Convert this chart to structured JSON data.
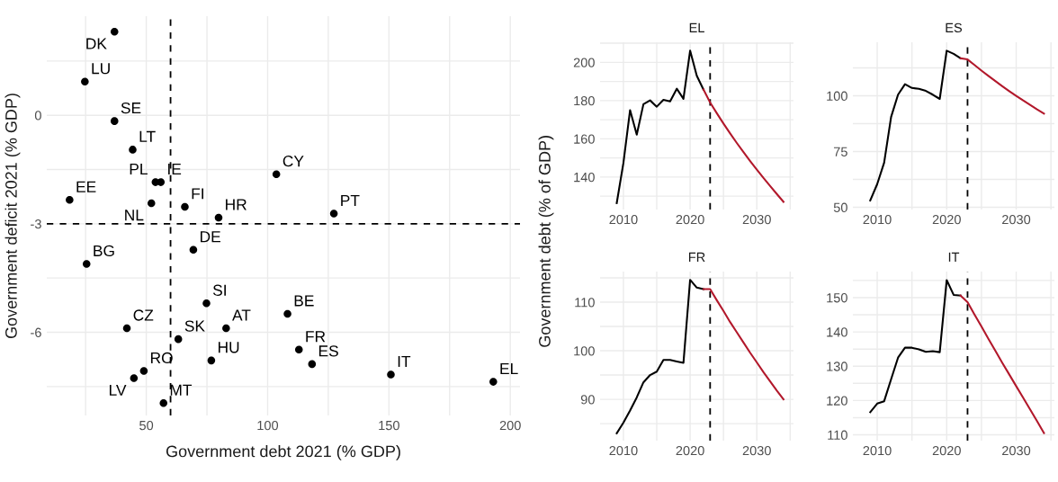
{
  "chart_data": [
    {
      "type": "scatter",
      "xlabel": "Government debt 2021 (% GDP)",
      "ylabel": "Government deficit 2021 (% GDP)",
      "xlim": [
        9,
        204
      ],
      "ylim": [
        -8.3,
        2.74
      ],
      "xticks": [
        {
          "value": 25,
          "label": null
        },
        50,
        {
          "value": 75,
          "label": null
        },
        100,
        {
          "value": 125,
          "label": null
        },
        150,
        {
          "value": 175,
          "label": null
        },
        200
      ],
      "yticks": [
        {
          "value": -7.5,
          "label": null
        },
        -6,
        {
          "value": -4.5,
          "label": null
        },
        -3,
        {
          "value": -1.5,
          "label": null
        },
        0,
        {
          "value": 1.5,
          "label": null
        }
      ],
      "grid": true,
      "marker": "circle",
      "x": [
        36.9,
        24.7,
        36.9,
        44.4,
        56.0,
        53.8,
        52.1,
        18.4,
        65.9,
        79.8,
        103.6,
        127.3,
        69.4,
        25.4,
        74.8,
        108.2,
        42.0,
        82.9,
        63.2,
        112.9,
        76.8,
        118.3,
        49.0,
        150.8,
        44.9,
        193.0,
        57.1
      ],
      "series": [
        {
          "color": "#000000",
          "values": [
            2.31,
            0.93,
            -0.16,
            -0.95,
            -1.85,
            -1.85,
            -2.43,
            -2.34,
            -2.53,
            -2.83,
            -1.63,
            -2.72,
            -3.72,
            -4.11,
            -5.2,
            -5.49,
            -5.89,
            -5.89,
            -6.19,
            -6.48,
            -6.78,
            -6.88,
            -7.07,
            -7.17,
            -7.27,
            -7.37,
            -7.96
          ]
        }
      ],
      "annotations": [
        {
          "text": "DK",
          "x": 36.9,
          "y": 2.31
        },
        {
          "text": "LU",
          "x": 24.7,
          "y": 0.93
        },
        {
          "text": "SE",
          "x": 36.9,
          "y": -0.16
        },
        {
          "text": "LT",
          "x": 44.4,
          "y": -0.95
        },
        {
          "text": "IE",
          "x": 56.0,
          "y": -1.85
        },
        {
          "text": "PL",
          "x": 53.8,
          "y": -1.85
        },
        {
          "text": "NL",
          "x": 52.1,
          "y": -2.43
        },
        {
          "text": "EE",
          "x": 18.4,
          "y": -2.34
        },
        {
          "text": "FI",
          "x": 65.9,
          "y": -2.53
        },
        {
          "text": "HR",
          "x": 79.8,
          "y": -2.83
        },
        {
          "text": "CY",
          "x": 103.6,
          "y": -1.63
        },
        {
          "text": "PT",
          "x": 127.3,
          "y": -2.72
        },
        {
          "text": "DE",
          "x": 69.4,
          "y": -3.72
        },
        {
          "text": "BG",
          "x": 25.4,
          "y": -4.11
        },
        {
          "text": "SI",
          "x": 74.8,
          "y": -5.2
        },
        {
          "text": "BE",
          "x": 108.2,
          "y": -5.49
        },
        {
          "text": "CZ",
          "x": 42.0,
          "y": -5.89
        },
        {
          "text": "AT",
          "x": 82.9,
          "y": -5.89
        },
        {
          "text": "SK",
          "x": 63.2,
          "y": -6.19
        },
        {
          "text": "FR",
          "x": 112.9,
          "y": -6.48
        },
        {
          "text": "HU",
          "x": 76.8,
          "y": -6.78
        },
        {
          "text": "ES",
          "x": 118.3,
          "y": -6.88
        },
        {
          "text": "RO",
          "x": 49.0,
          "y": -7.07
        },
        {
          "text": "IT",
          "x": 150.8,
          "y": -7.17
        },
        {
          "text": "LV",
          "x": 44.9,
          "y": -7.27
        },
        {
          "text": "EL",
          "x": 193.0,
          "y": -7.37
        },
        {
          "text": "MT",
          "x": 57.1,
          "y": -7.96
        }
      ],
      "ref_lines": [
        {
          "axis": "x",
          "value": 60,
          "color": "#000000",
          "line_style": "dashed"
        },
        {
          "axis": "y",
          "value": -3,
          "color": "#000000",
          "line_style": "dashed"
        }
      ]
    },
    {
      "type": "line",
      "title": "EL",
      "ylabel": "Government debt (% of GDP)",
      "xlim": [
        2006.5,
        2035.5
      ],
      "ylim": [
        123,
        210.5
      ],
      "xticks": [
        2010,
        {
          "value": 2015,
          "label": null
        },
        2020,
        {
          "value": 2025,
          "label": null
        },
        2030,
        {
          "value": 2035,
          "label": null
        }
      ],
      "yticks": [
        {
          "value": 130,
          "label": null
        },
        140,
        {
          "value": 150,
          "label": null
        },
        160,
        {
          "value": 170,
          "label": null
        },
        180,
        {
          "value": 190,
          "label": null
        },
        200,
        {
          "value": 210,
          "label": null
        }
      ],
      "grid": true,
      "marker": "none",
      "line_style": "solid",
      "series": [
        {
          "color": "#000000",
          "x": [
            2009,
            2010,
            2011,
            2012,
            2013,
            2014,
            2015,
            2016,
            2017,
            2018,
            2019,
            2020,
            2021,
            2022
          ],
          "values": [
            126.4,
            147.4,
            175.0,
            162.2,
            178.1,
            180.1,
            176.8,
            180.4,
            179.6,
            186.2,
            180.9,
            206.1,
            193.0,
            185.8
          ]
        },
        {
          "color": "#b2182b",
          "x": [
            2022,
            2023,
            2024,
            2025,
            2026,
            2027,
            2028,
            2029,
            2030,
            2031,
            2032,
            2033,
            2034
          ],
          "values": [
            185.8,
            179.0,
            173.4,
            168.0,
            162.8,
            157.8,
            153.0,
            148.4,
            143.9,
            139.5,
            135.3,
            131.1,
            127.0
          ]
        }
      ],
      "ref_lines": [
        {
          "axis": "x",
          "value": 2023,
          "color": "#000000",
          "line_style": "dashed"
        }
      ]
    },
    {
      "type": "line",
      "title": "ES",
      "xlim": [
        2006.5,
        2035.5
      ],
      "ylim": [
        49,
        124
      ],
      "xticks": [
        2010,
        {
          "value": 2015,
          "label": null
        },
        2020,
        {
          "value": 2025,
          "label": null
        },
        2030,
        {
          "value": 2035,
          "label": null
        }
      ],
      "yticks": [
        50,
        {
          "value": 62.5,
          "label": null
        },
        75,
        {
          "value": 87.5,
          "label": null
        },
        100,
        {
          "value": 112.5,
          "label": null
        }
      ],
      "grid": true,
      "marker": "none",
      "line_style": "solid",
      "series": [
        {
          "color": "#000000",
          "x": [
            2009,
            2010,
            2011,
            2012,
            2013,
            2014,
            2015,
            2016,
            2017,
            2018,
            2019,
            2020,
            2021,
            2022
          ],
          "values": [
            53.1,
            60.4,
            70.0,
            90.5,
            100.5,
            105.2,
            103.5,
            103.1,
            102.2,
            100.5,
            98.6,
            120.2,
            118.8,
            116.8
          ]
        },
        {
          "color": "#b2182b",
          "x": [
            2022,
            2023,
            2024,
            2025,
            2026,
            2027,
            2028,
            2029,
            2030,
            2031,
            2032,
            2033,
            2034
          ],
          "values": [
            116.8,
            116.3,
            113.8,
            111.3,
            108.9,
            106.6,
            104.3,
            102.1,
            100.0,
            97.9,
            95.9,
            93.9,
            92.0
          ]
        }
      ],
      "ref_lines": [
        {
          "axis": "x",
          "value": 2023,
          "color": "#000000",
          "line_style": "dashed"
        }
      ]
    },
    {
      "type": "line",
      "title": "FR",
      "xlim": [
        2006.5,
        2035.5
      ],
      "ylim": [
        81.5,
        116.3
      ],
      "xticks": [
        2010,
        {
          "value": 2015,
          "label": null
        },
        2020,
        {
          "value": 2025,
          "label": null
        },
        2030,
        {
          "value": 2035,
          "label": null
        }
      ],
      "yticks": [
        {
          "value": 85,
          "label": null
        },
        90,
        {
          "value": 95,
          "label": null
        },
        100,
        {
          "value": 105,
          "label": null
        },
        110,
        {
          "value": 115,
          "label": null
        }
      ],
      "grid": true,
      "marker": "none",
      "line_style": "solid",
      "series": [
        {
          "color": "#000000",
          "x": [
            2009,
            2010,
            2011,
            2012,
            2013,
            2014,
            2015,
            2016,
            2017,
            2018,
            2019,
            2020,
            2021,
            2022
          ],
          "values": [
            83.0,
            85.2,
            87.7,
            90.4,
            93.5,
            95.0,
            95.7,
            98.1,
            98.1,
            97.8,
            97.5,
            114.6,
            113.0,
            112.7
          ]
        },
        {
          "color": "#b2182b",
          "x": [
            2022,
            2023,
            2024,
            2025,
            2026,
            2027,
            2028,
            2029,
            2030,
            2031,
            2032,
            2033,
            2034
          ],
          "values": [
            112.7,
            112.7,
            110.4,
            108.2,
            105.9,
            103.8,
            101.7,
            99.6,
            97.6,
            95.6,
            93.7,
            91.8,
            90.0
          ]
        }
      ],
      "ref_lines": [
        {
          "axis": "x",
          "value": 2023,
          "color": "#000000",
          "line_style": "dashed"
        }
      ]
    },
    {
      "type": "line",
      "title": "IT",
      "xlim": [
        2006.5,
        2035.5
      ],
      "ylim": [
        108.3,
        157.6
      ],
      "xticks": [
        2010,
        {
          "value": 2015,
          "label": null
        },
        2020,
        {
          "value": 2025,
          "label": null
        },
        2030,
        {
          "value": 2035,
          "label": null
        }
      ],
      "yticks": [
        110,
        {
          "value": 115,
          "label": null
        },
        120,
        {
          "value": 125,
          "label": null
        },
        130,
        {
          "value": 135,
          "label": null
        },
        140,
        {
          "value": 145,
          "label": null
        },
        150,
        {
          "value": 155,
          "label": null
        }
      ],
      "grid": true,
      "marker": "none",
      "line_style": "solid",
      "series": [
        {
          "color": "#000000",
          "x": [
            2009,
            2010,
            2011,
            2012,
            2013,
            2014,
            2015,
            2016,
            2017,
            2018,
            2019,
            2020,
            2021,
            2022
          ],
          "values": [
            116.6,
            119.1,
            119.8,
            126.2,
            132.5,
            135.4,
            135.4,
            134.9,
            134.2,
            134.4,
            134.1,
            155.1,
            150.8,
            150.6
          ]
        },
        {
          "color": "#b2182b",
          "x": [
            2022,
            2023,
            2024,
            2025,
            2026,
            2027,
            2028,
            2029,
            2030,
            2031,
            2032,
            2033,
            2034
          ],
          "values": [
            150.6,
            148.7,
            145.1,
            141.6,
            138.0,
            134.5,
            131.0,
            127.6,
            124.2,
            120.8,
            117.4,
            114.0,
            110.5
          ]
        }
      ],
      "ref_lines": [
        {
          "axis": "x",
          "value": 2023,
          "color": "#000000",
          "line_style": "dashed"
        }
      ]
    }
  ]
}
